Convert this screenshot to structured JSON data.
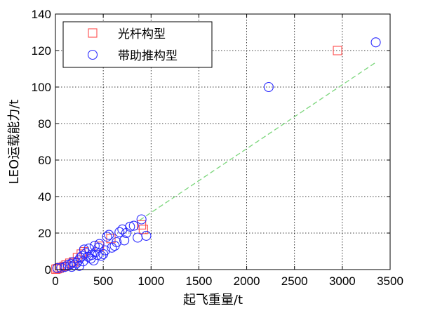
{
  "chart_data": {
    "type": "scatter",
    "title": "",
    "xlabel": "起飞重量/t",
    "ylabel": "LEO运载能力/t",
    "xlim": [
      0,
      3500
    ],
    "ylim": [
      0,
      140
    ],
    "xticks": [
      "0",
      "500",
      "1000",
      "1500",
      "2000",
      "2500",
      "3000",
      "3500"
    ],
    "yticks": [
      "0",
      "20",
      "40",
      "60",
      "80",
      "100",
      "120",
      "140"
    ],
    "grid": true,
    "legend_position": "top-left",
    "series": [
      {
        "name": "光杆构型",
        "marker": "square",
        "color": "#ff4d4d",
        "points": [
          [
            5,
            0.2
          ],
          [
            20,
            0.5
          ],
          [
            40,
            0.8
          ],
          [
            60,
            1.2
          ],
          [
            90,
            1.8
          ],
          [
            110,
            2.5
          ],
          [
            150,
            3.5
          ],
          [
            190,
            4.2
          ],
          [
            230,
            6.5
          ],
          [
            270,
            8.5
          ],
          [
            300,
            9.8
          ],
          [
            460,
            12.8
          ],
          [
            580,
            17
          ],
          [
            900,
            24.5
          ],
          [
            920,
            22
          ],
          [
            2950,
            120
          ]
        ]
      },
      {
        "name": "带助推构型",
        "marker": "circle",
        "color": "#2a2aff",
        "points": [
          [
            20,
            0.8
          ],
          [
            60,
            1
          ],
          [
            100,
            1.5
          ],
          [
            130,
            2.5
          ],
          [
            160,
            3
          ],
          [
            170,
            1.5
          ],
          [
            180,
            4
          ],
          [
            200,
            2.5
          ],
          [
            220,
            3.5
          ],
          [
            240,
            5
          ],
          [
            260,
            6.5
          ],
          [
            250,
            2
          ],
          [
            280,
            7.5
          ],
          [
            290,
            4.5
          ],
          [
            300,
            11
          ],
          [
            320,
            9
          ],
          [
            340,
            7
          ],
          [
            350,
            11.5
          ],
          [
            370,
            6
          ],
          [
            380,
            8
          ],
          [
            400,
            5
          ],
          [
            410,
            13
          ],
          [
            420,
            9.5
          ],
          [
            440,
            8
          ],
          [
            450,
            12
          ],
          [
            460,
            14
          ],
          [
            480,
            7.5
          ],
          [
            500,
            8.5
          ],
          [
            520,
            10.5
          ],
          [
            540,
            18
          ],
          [
            560,
            19
          ],
          [
            590,
            12
          ],
          [
            620,
            13
          ],
          [
            640,
            15
          ],
          [
            670,
            20.5
          ],
          [
            700,
            22
          ],
          [
            720,
            16
          ],
          [
            740,
            20
          ],
          [
            780,
            23.5
          ],
          [
            820,
            24
          ],
          [
            860,
            17.5
          ],
          [
            900,
            27.5
          ],
          [
            950,
            18.5
          ],
          [
            2230,
            100
          ],
          [
            3350,
            124.5
          ]
        ]
      }
    ],
    "trend_line": {
      "style": "dashed",
      "color": "#7bd67b",
      "from": [
        880,
        27
      ],
      "to": [
        3350,
        113.5
      ]
    }
  }
}
